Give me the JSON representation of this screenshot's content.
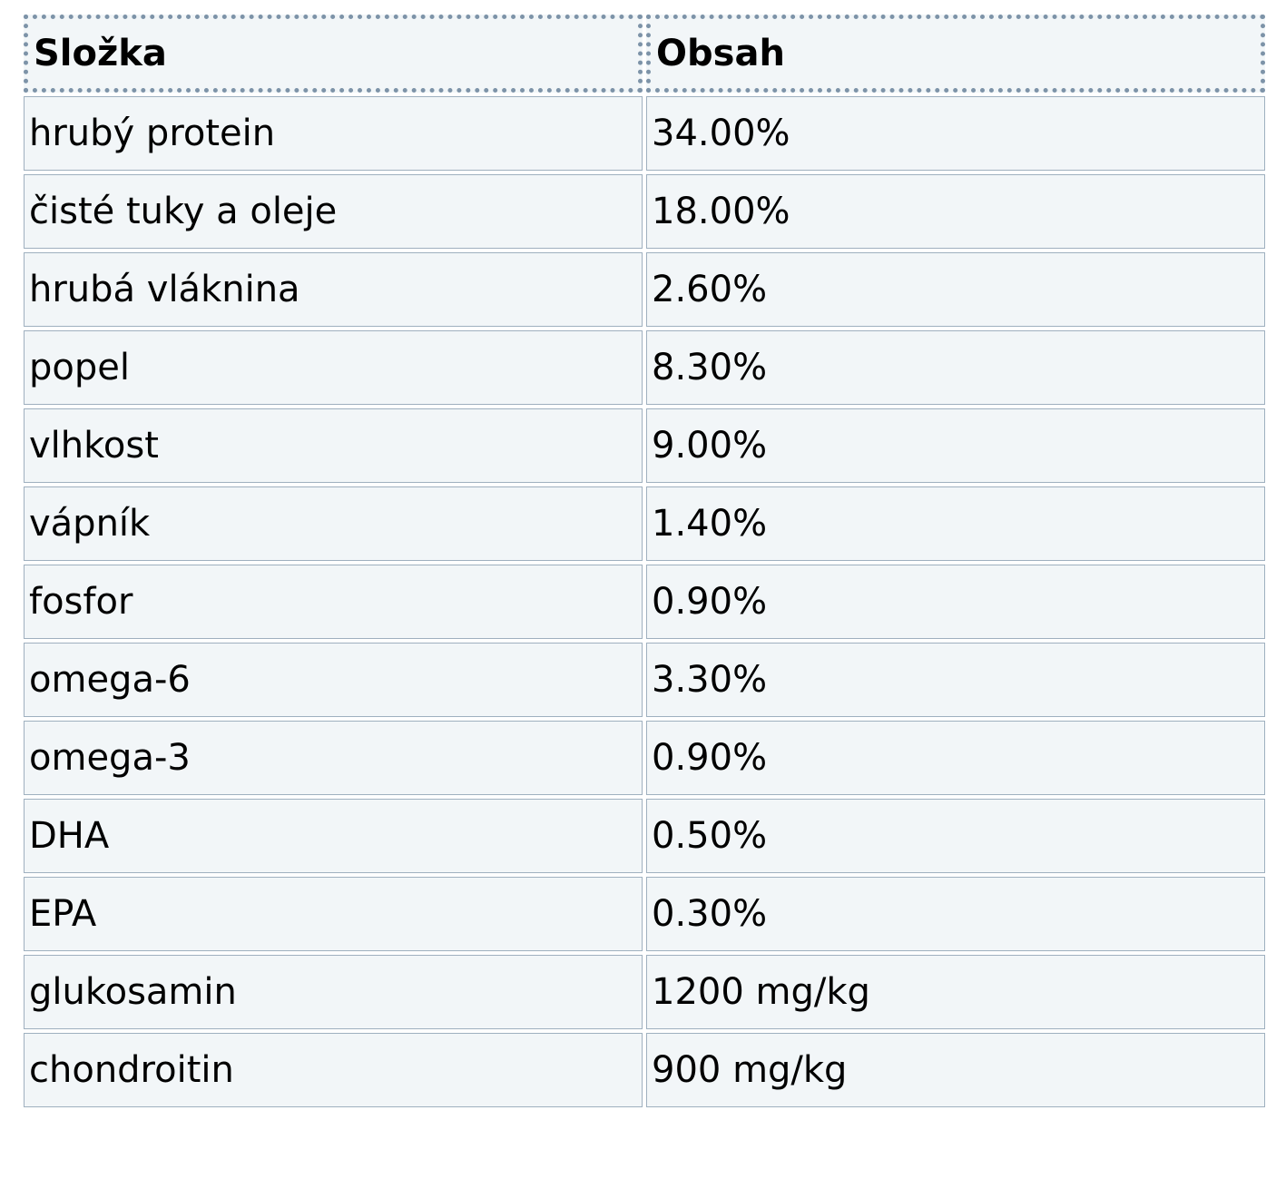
{
  "table": {
    "headers": [
      "Složka",
      "Obsah"
    ],
    "rows": [
      [
        "hrubý protein",
        "34.00%"
      ],
      [
        "čisté tuky a oleje",
        "18.00%"
      ],
      [
        "hrubá vláknina",
        "2.60%"
      ],
      [
        "popel",
        "8.30%"
      ],
      [
        "vlhkost",
        "9.00%"
      ],
      [
        "vápník",
        "1.40%"
      ],
      [
        "fosfor",
        "0.90%"
      ],
      [
        "omega-6",
        "3.30%"
      ],
      [
        "omega-3",
        "0.90%"
      ],
      [
        "DHA",
        "0.50%"
      ],
      [
        "EPA",
        "0.30%"
      ],
      [
        "glukosamin",
        "1200 mg/kg"
      ],
      [
        "chondroitin",
        "900 mg/kg"
      ]
    ]
  },
  "colors": {
    "cell_background": "#f2f6f8",
    "header_border": "#7d93a8",
    "cell_border": "#9fb0bf",
    "text": "#000000"
  }
}
